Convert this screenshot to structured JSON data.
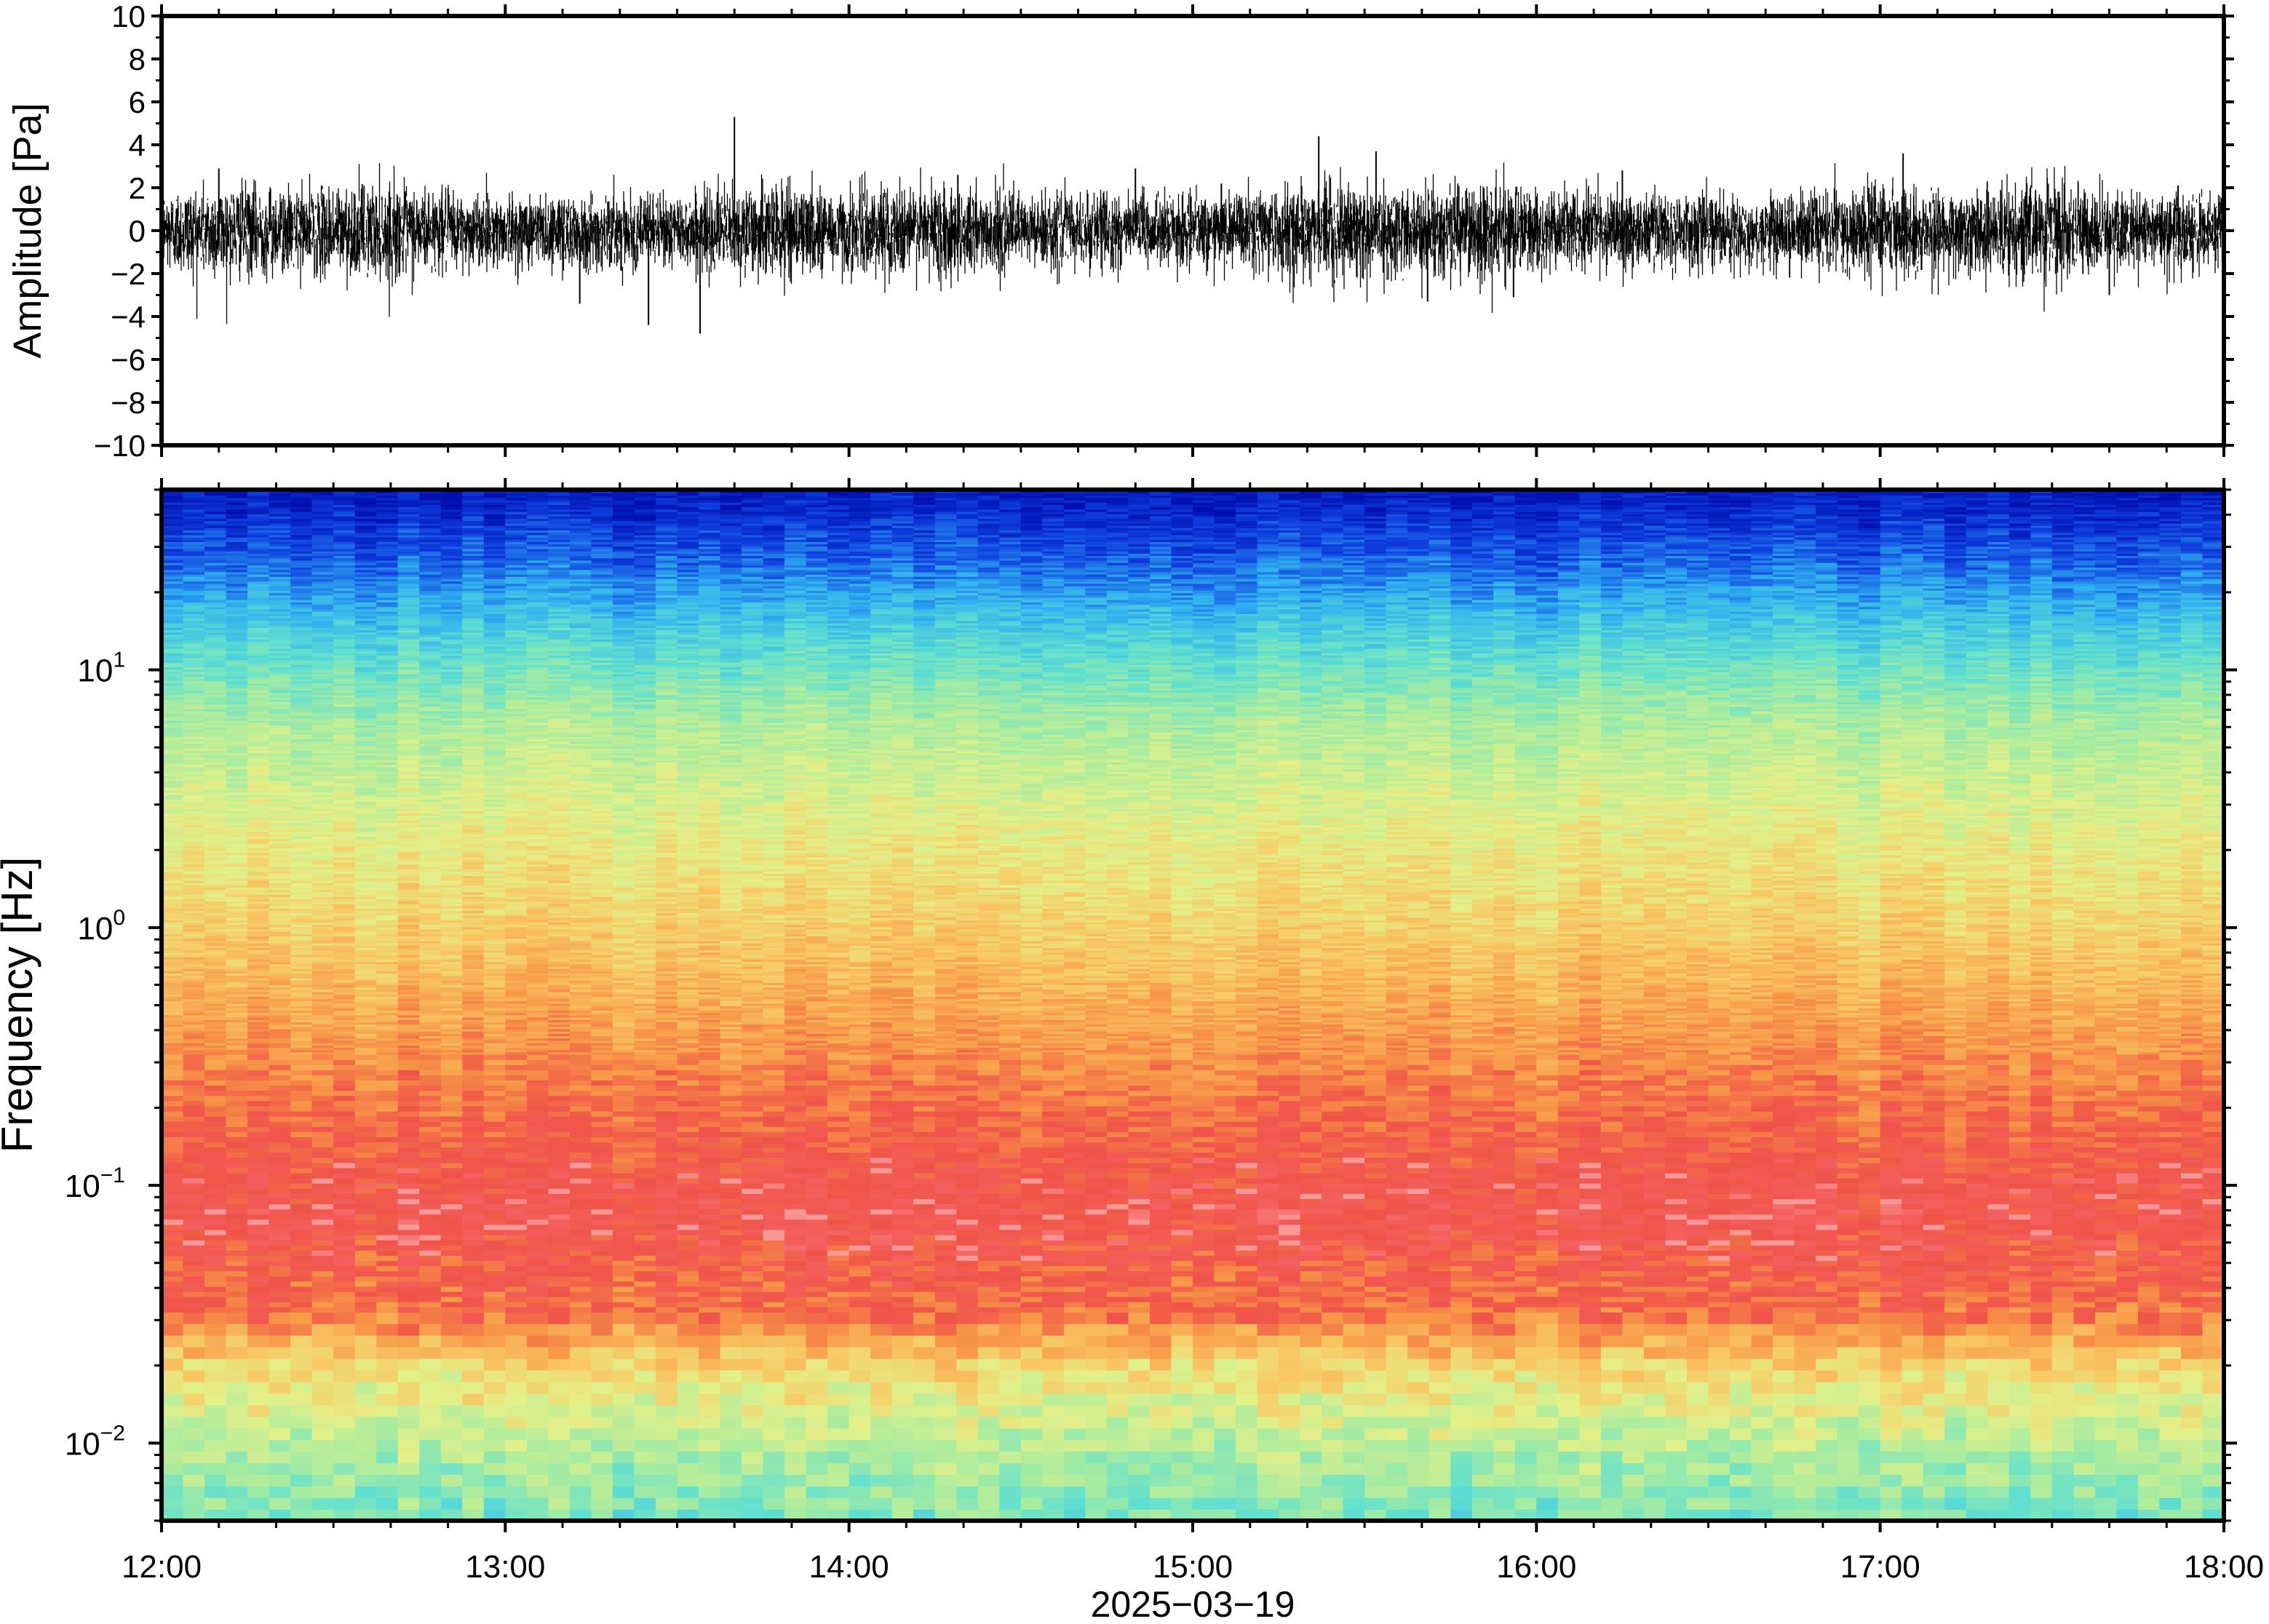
{
  "chart_data": [
    {
      "type": "line",
      "title": "",
      "xlabel": "",
      "ylabel": "Amplitude [Pa]",
      "x_range": [
        "2025-03-19T12:00",
        "2025-03-19T18:00"
      ],
      "ylim": [
        -10,
        10
      ],
      "yticks": [
        "10",
        "8",
        "6",
        "4",
        "2",
        "0",
        "−2",
        "−4",
        "−6",
        "−8",
        "−10"
      ],
      "grid": false,
      "legend": "none",
      "series": [
        {
          "color": "#000000",
          "noise_band_pa": 2,
          "spikes": [
            {
              "time": "12:10",
              "value": 2.9
            },
            {
              "time": "13:13",
              "value": -3.4
            },
            {
              "time": "13:25",
              "value": -4.4
            },
            {
              "time": "13:34",
              "value": -4.8
            },
            {
              "time": "13:40",
              "value": 5.3
            },
            {
              "time": "14:19",
              "value": 2.6
            },
            {
              "time": "14:50",
              "value": 2.9
            },
            {
              "time": "15:05",
              "value": 2.2
            },
            {
              "time": "15:22",
              "value": 4.4
            },
            {
              "time": "15:32",
              "value": 3.7
            },
            {
              "time": "15:41",
              "value": -3.3
            },
            {
              "time": "15:56",
              "value": -3.1
            },
            {
              "time": "16:15",
              "value": 2.8
            },
            {
              "time": "16:58",
              "value": 2.0
            },
            {
              "time": "17:04",
              "value": 3.6
            },
            {
              "time": "17:40",
              "value": -3.0
            },
            {
              "time": "17:52",
              "value": 2.1
            }
          ]
        }
      ]
    },
    {
      "type": "heatmap",
      "title": "",
      "xlabel": "2025−03−19",
      "ylabel": "Frequency [Hz]",
      "y_scale": "log",
      "ylim": [
        0.005,
        50
      ],
      "x_range": [
        "2025-03-19T12:00",
        "2025-03-19T18:00"
      ],
      "xticks": [
        "12:00",
        "13:00",
        "14:00",
        "15:00",
        "16:00",
        "17:00",
        "18:00"
      ],
      "yticks": [
        {
          "base": "10",
          "exp": "1",
          "value": 10
        },
        {
          "base": "10",
          "exp": "0",
          "value": 1
        },
        {
          "base": "10",
          "exp": "−1",
          "value": 0.1
        },
        {
          "base": "10",
          "exp": "−2",
          "value": 0.01
        }
      ],
      "colormap": "jet-like (dark blue low → cyan → green → yellow → orange → red → pink high)",
      "colors": {
        "low": "#0018c8",
        "mid_low": "#40d8f0",
        "mid": "#d8f088",
        "mid_high": "#f8a048",
        "high": "#f04848",
        "peak": "#f89898"
      },
      "grid": false,
      "legend": "none"
    }
  ]
}
